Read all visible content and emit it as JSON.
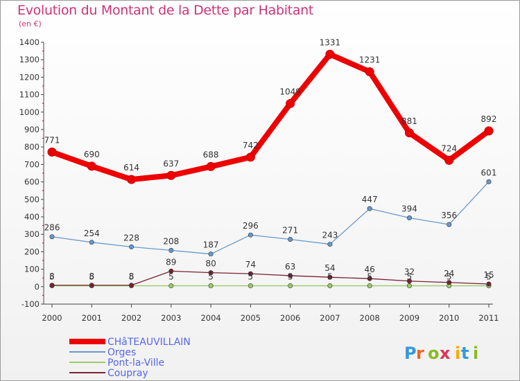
{
  "title": "Evolution du Montant de la Dette par Habitant",
  "unit": "(en €)",
  "logo_text": "Proxiti",
  "chart_data": {
    "type": "line",
    "x": [
      "2000",
      "2001",
      "2002",
      "2003",
      "2004",
      "2005",
      "2006",
      "2007",
      "2008",
      "2009",
      "2010",
      "2011"
    ],
    "ylim": [
      -100,
      1400
    ],
    "yticks": [
      -100,
      0,
      100,
      200,
      300,
      400,
      500,
      600,
      700,
      800,
      900,
      1000,
      1100,
      1200,
      1300,
      1400
    ],
    "grid": false,
    "legend_position": "bottom-left",
    "series": [
      {
        "name": "CHâTEAUVILLAIN",
        "color": "#ee0000",
        "values": [
          771,
          690,
          614,
          637,
          688,
          742,
          1049,
          1331,
          1231,
          881,
          724,
          892
        ],
        "labels": [
          "771",
          "690",
          "614",
          "637",
          "688",
          "742",
          "1049",
          "1331",
          "1231",
          "881",
          "724",
          "892"
        ]
      },
      {
        "name": "Orges",
        "color": "#6699cc",
        "values": [
          286,
          254,
          228,
          208,
          187,
          296,
          271,
          243,
          447,
          394,
          356,
          601
        ],
        "labels": [
          "286",
          "254",
          "228",
          "208",
          "187",
          "296",
          "271",
          "243",
          "447",
          "394",
          "356",
          "601"
        ]
      },
      {
        "name": "Pont-la-Ville",
        "color": "#99cc66",
        "values": [
          5,
          5,
          5,
          5,
          5,
          5,
          5,
          5,
          5,
          5,
          5,
          5
        ],
        "labels": [
          "5",
          "5",
          "5",
          "5",
          "5",
          "5",
          "5",
          "5",
          "5",
          "5",
          "5",
          "5"
        ]
      },
      {
        "name": "Coupray",
        "color": "#772233",
        "values": [
          8,
          8,
          8,
          89,
          80,
          74,
          63,
          54,
          46,
          32,
          24,
          15
        ],
        "labels": [
          "8",
          "8",
          "8",
          "89",
          "80",
          "74",
          "63",
          "54",
          "46",
          "32",
          "24",
          "15"
        ]
      }
    ]
  },
  "legend_colors": {
    "text": "#5566ee"
  }
}
